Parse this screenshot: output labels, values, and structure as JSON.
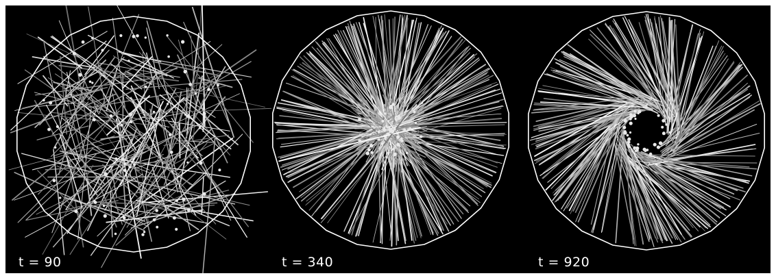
{
  "panels": [
    {
      "time_label": "t = 90",
      "stage": "disordered"
    },
    {
      "time_label": "t = 340",
      "stage": "partially-aligned"
    },
    {
      "time_label": "t = 920",
      "stage": "vortex"
    }
  ],
  "colors": {
    "background": "#000000",
    "boundary": "#ffffff",
    "filament": "#cfcfcf",
    "particle": "#e8e8e8"
  }
}
